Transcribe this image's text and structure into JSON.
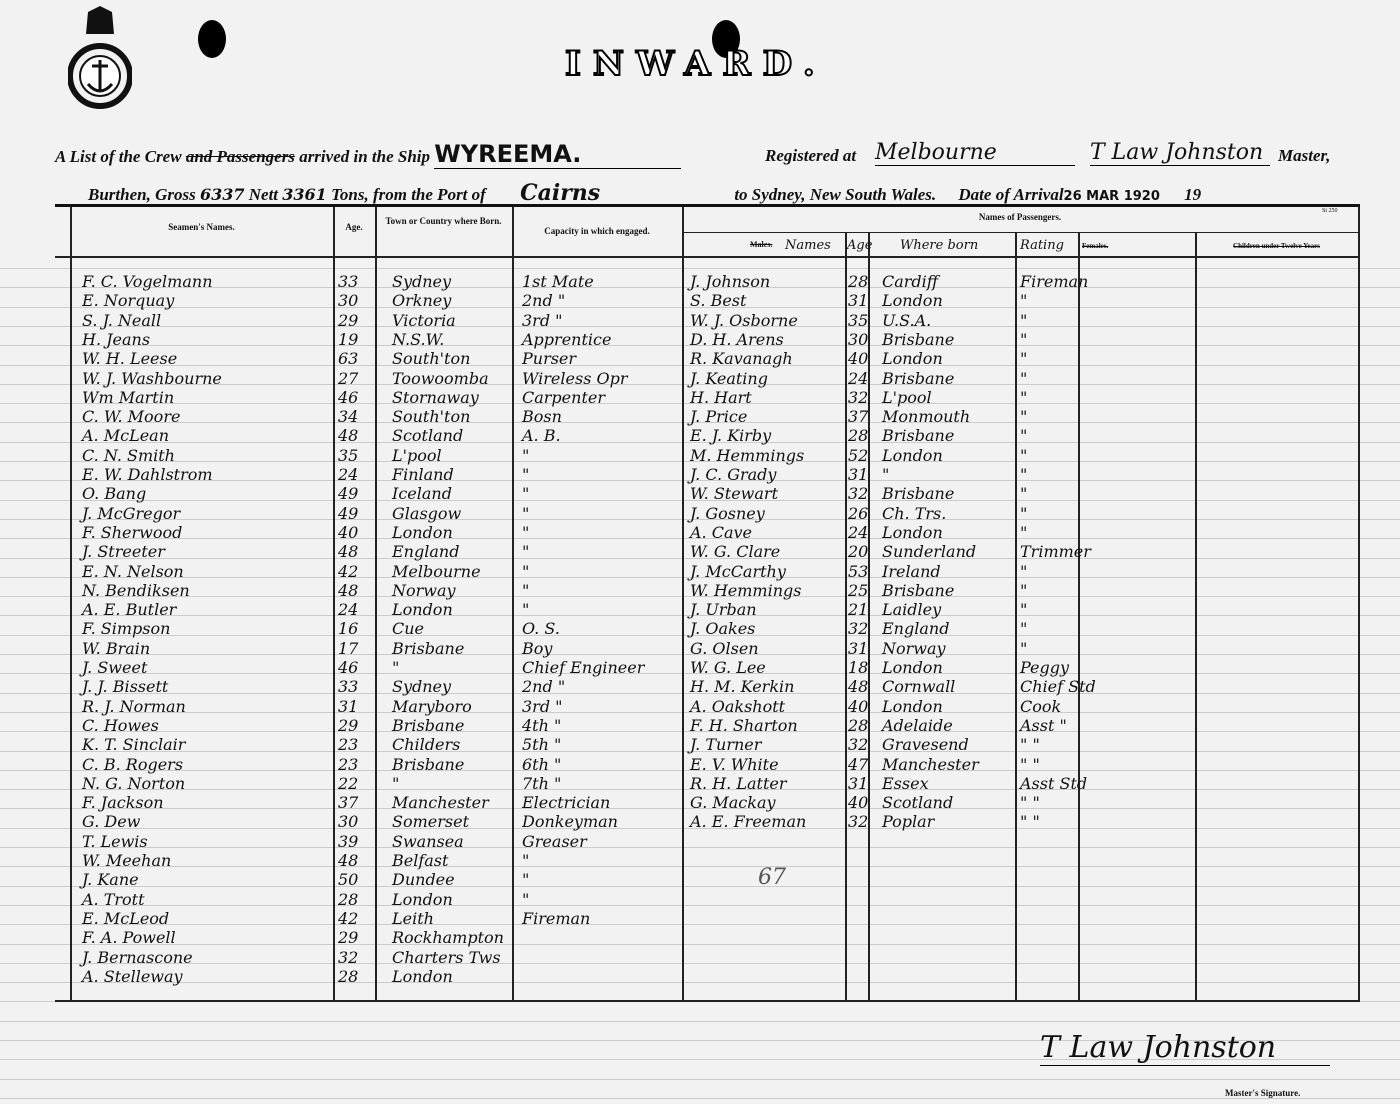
{
  "document": {
    "title": "INWARD.",
    "line1": {
      "pre": "A List of the Crew",
      "struck": "and Passengers",
      "mid": "arrived in the Ship",
      "ship": "WYREEMA.",
      "reg_label": "Registered at",
      "registered_at": "Melbourne",
      "master": "T Law Johnston",
      "master_label": "Master,"
    },
    "line2": {
      "burthen": "Burthen, Gross",
      "gross": "6337",
      "nett_label": "Nett",
      "nett": "3361",
      "tons": "Tons, from the Port of",
      "port": "Cairns",
      "to": "to Sydney, New South Wales.",
      "date_label": "Date of Arrival",
      "date": "26 MAR 1920",
      "year": "19"
    },
    "form_no": "St 250",
    "seal_text": "SHIPPING MASTER'S OFFICE SYDNEY",
    "headers": {
      "seaman": "Seamen's Names.",
      "age": "Age.",
      "town": "Town or Country where Born.",
      "capacity": "Capacity in which engaged.",
      "passengers": "Names of Passengers.",
      "males": "Males.",
      "names": "Names",
      "p_age": "Age",
      "where_born": "Where born",
      "rating": "Rating",
      "females": "Females.",
      "children": "Children under Twelve Years"
    },
    "annotation": "67",
    "signature": "T Law Johnston",
    "signature_label": "Master's Signature."
  },
  "crew": [
    [
      "F. C. Vogelmann",
      "33",
      "Sydney",
      "1st Mate"
    ],
    [
      "E. Norquay",
      "30",
      "Orkney",
      "2nd \""
    ],
    [
      "S. J. Neall",
      "29",
      "Victoria",
      "3rd \""
    ],
    [
      "H. Jeans",
      "19",
      "N.S.W.",
      "Apprentice"
    ],
    [
      "W. H. Leese",
      "63",
      "South'ton",
      "Purser"
    ],
    [
      "W. J. Washbourne",
      "27",
      "Toowoomba",
      "Wireless Opr"
    ],
    [
      "Wm Martin",
      "46",
      "Stornaway",
      "Carpenter"
    ],
    [
      "C. W. Moore",
      "34",
      "South'ton",
      "Bosn"
    ],
    [
      "A. McLean",
      "48",
      "Scotland",
      "A. B."
    ],
    [
      "C. N. Smith",
      "35",
      "L'pool",
      "\""
    ],
    [
      "E. W. Dahlstrom",
      "24",
      "Finland",
      "\""
    ],
    [
      "O. Bang",
      "49",
      "Iceland",
      "\""
    ],
    [
      "J. McGregor",
      "49",
      "Glasgow",
      "\""
    ],
    [
      "F. Sherwood",
      "40",
      "London",
      "\""
    ],
    [
      "J. Streeter",
      "48",
      "England",
      "\""
    ],
    [
      "E. N. Nelson",
      "42",
      "Melbourne",
      "\""
    ],
    [
      "N. Bendiksen",
      "48",
      "Norway",
      "\""
    ],
    [
      "A. E. Butler",
      "24",
      "London",
      "\""
    ],
    [
      "F. Simpson",
      "16",
      "Cue",
      "O. S."
    ],
    [
      "W. Brain",
      "17",
      "Brisbane",
      "Boy"
    ],
    [
      "J. Sweet",
      "46",
      "\"",
      "Chief Engineer"
    ],
    [
      "J. J. Bissett",
      "33",
      "Sydney",
      "2nd \""
    ],
    [
      "R. J. Norman",
      "31",
      "Maryboro",
      "3rd \""
    ],
    [
      "C. Howes",
      "29",
      "Brisbane",
      "4th \""
    ],
    [
      "K. T. Sinclair",
      "23",
      "Childers",
      "5th \""
    ],
    [
      "C. B. Rogers",
      "23",
      "Brisbane",
      "6th \""
    ],
    [
      "N. G. Norton",
      "22",
      "\"",
      "7th \""
    ],
    [
      "F. Jackson",
      "37",
      "Manchester",
      "Electrician"
    ],
    [
      "G. Dew",
      "30",
      "Somerset",
      "Donkeyman"
    ],
    [
      "T. Lewis",
      "39",
      "Swansea",
      "Greaser"
    ],
    [
      "W. Meehan",
      "48",
      "Belfast",
      "\""
    ],
    [
      "J. Kane",
      "50",
      "Dundee",
      "\""
    ],
    [
      "A. Trott",
      "28",
      "London",
      "\""
    ],
    [
      "E. McLeod",
      "42",
      "Leith",
      "Fireman"
    ],
    [
      "F. A. Powell",
      "29",
      "Rockhampton",
      ""
    ],
    [
      "J. Bernascone",
      "32",
      "Charters Tws",
      ""
    ],
    [
      "A. Stelleway",
      "28",
      "London",
      ""
    ]
  ],
  "passengers": [
    [
      "J. Johnson",
      "28",
      "Cardiff",
      "Fireman"
    ],
    [
      "S. Best",
      "31",
      "London",
      "\""
    ],
    [
      "W. J. Osborne",
      "35",
      "U.S.A.",
      "\""
    ],
    [
      "D. H. Arens",
      "30",
      "Brisbane",
      "\""
    ],
    [
      "R. Kavanagh",
      "40",
      "London",
      "\""
    ],
    [
      "J. Keating",
      "24",
      "Brisbane",
      "\""
    ],
    [
      "H. Hart",
      "32",
      "L'pool",
      "\""
    ],
    [
      "J. Price",
      "37",
      "Monmouth",
      "\""
    ],
    [
      "E. J. Kirby",
      "28",
      "Brisbane",
      "\""
    ],
    [
      "M. Hemmings",
      "52",
      "London",
      "\""
    ],
    [
      "J. C. Grady",
      "31",
      "\"",
      "\""
    ],
    [
      "W. Stewart",
      "32",
      "Brisbane",
      "\""
    ],
    [
      "J. Gosney",
      "26",
      "Ch. Trs.",
      "\""
    ],
    [
      "A. Cave",
      "24",
      "London",
      "\""
    ],
    [
      "W. G. Clare",
      "20",
      "Sunderland",
      "Trimmer"
    ],
    [
      "J. McCarthy",
      "53",
      "Ireland",
      "\""
    ],
    [
      "W. Hemmings",
      "25",
      "Brisbane",
      "\""
    ],
    [
      "J. Urban",
      "21",
      "Laidley",
      "\""
    ],
    [
      "J. Oakes",
      "32",
      "England",
      "\""
    ],
    [
      "G. Olsen",
      "31",
      "Norway",
      "\""
    ],
    [
      "W. G. Lee",
      "18",
      "London",
      "Peggy"
    ],
    [
      "H. M. Kerkin",
      "48",
      "Cornwall",
      "Chief Std"
    ],
    [
      "A. Oakshott",
      "40",
      "London",
      "Cook"
    ],
    [
      "F. H. Sharton",
      "28",
      "Adelaide",
      "Asst \""
    ],
    [
      "J. Turner",
      "32",
      "Gravesend",
      "\" \""
    ],
    [
      "E. V. White",
      "47",
      "Manchester",
      "\" \""
    ],
    [
      "R. H. Latter",
      "31",
      "Essex",
      "Asst Std"
    ],
    [
      "G. Mackay",
      "40",
      "Scotland",
      "\" \""
    ],
    [
      "A. E. Freeman",
      "32",
      "Poplar",
      "\" \""
    ]
  ]
}
